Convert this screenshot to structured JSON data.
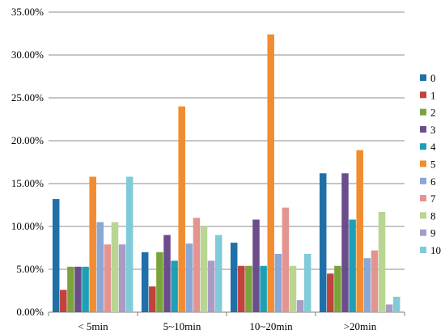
{
  "chart_data": {
    "type": "bar",
    "title": "",
    "xlabel": "",
    "ylabel": "",
    "ylim": [
      0,
      35
    ],
    "y_tick_labels": [
      "0.00%",
      "5.00%",
      "10.00%",
      "15.00%",
      "20.00%",
      "25.00%",
      "30.00%",
      "35.00%"
    ],
    "grid": "horizontal",
    "legend_position": "right",
    "categories": [
      "< 5min",
      "5~10min",
      "10~20min",
      ">20min"
    ],
    "series": [
      {
        "name": "0",
        "color": "#1f6fa8",
        "values": [
          13.2,
          7.0,
          8.1,
          16.2
        ]
      },
      {
        "name": "1",
        "color": "#c0433c",
        "values": [
          2.6,
          3.0,
          5.4,
          4.5
        ]
      },
      {
        "name": "2",
        "color": "#7aa33c",
        "values": [
          5.3,
          7.0,
          5.4,
          5.4
        ]
      },
      {
        "name": "3",
        "color": "#6b4d8c",
        "values": [
          5.3,
          9.0,
          10.8,
          16.2
        ]
      },
      {
        "name": "4",
        "color": "#1d9fb5",
        "values": [
          5.3,
          6.0,
          5.4,
          10.8
        ]
      },
      {
        "name": "5",
        "color": "#f28c30",
        "values": [
          15.8,
          24.0,
          32.4,
          18.9
        ]
      },
      {
        "name": "6",
        "color": "#89a8d6",
        "values": [
          10.5,
          8.0,
          6.8,
          6.3
        ]
      },
      {
        "name": "7",
        "color": "#e39490",
        "values": [
          7.9,
          11.0,
          12.2,
          7.2
        ]
      },
      {
        "name": "8",
        "color": "#b8d692",
        "values": [
          10.5,
          10.0,
          5.4,
          11.7
        ]
      },
      {
        "name": "9",
        "color": "#a99bc4",
        "values": [
          7.9,
          6.0,
          1.4,
          0.9
        ]
      },
      {
        "name": "10",
        "color": "#7fcbd9",
        "values": [
          15.8,
          9.0,
          6.8,
          1.8
        ]
      }
    ]
  }
}
